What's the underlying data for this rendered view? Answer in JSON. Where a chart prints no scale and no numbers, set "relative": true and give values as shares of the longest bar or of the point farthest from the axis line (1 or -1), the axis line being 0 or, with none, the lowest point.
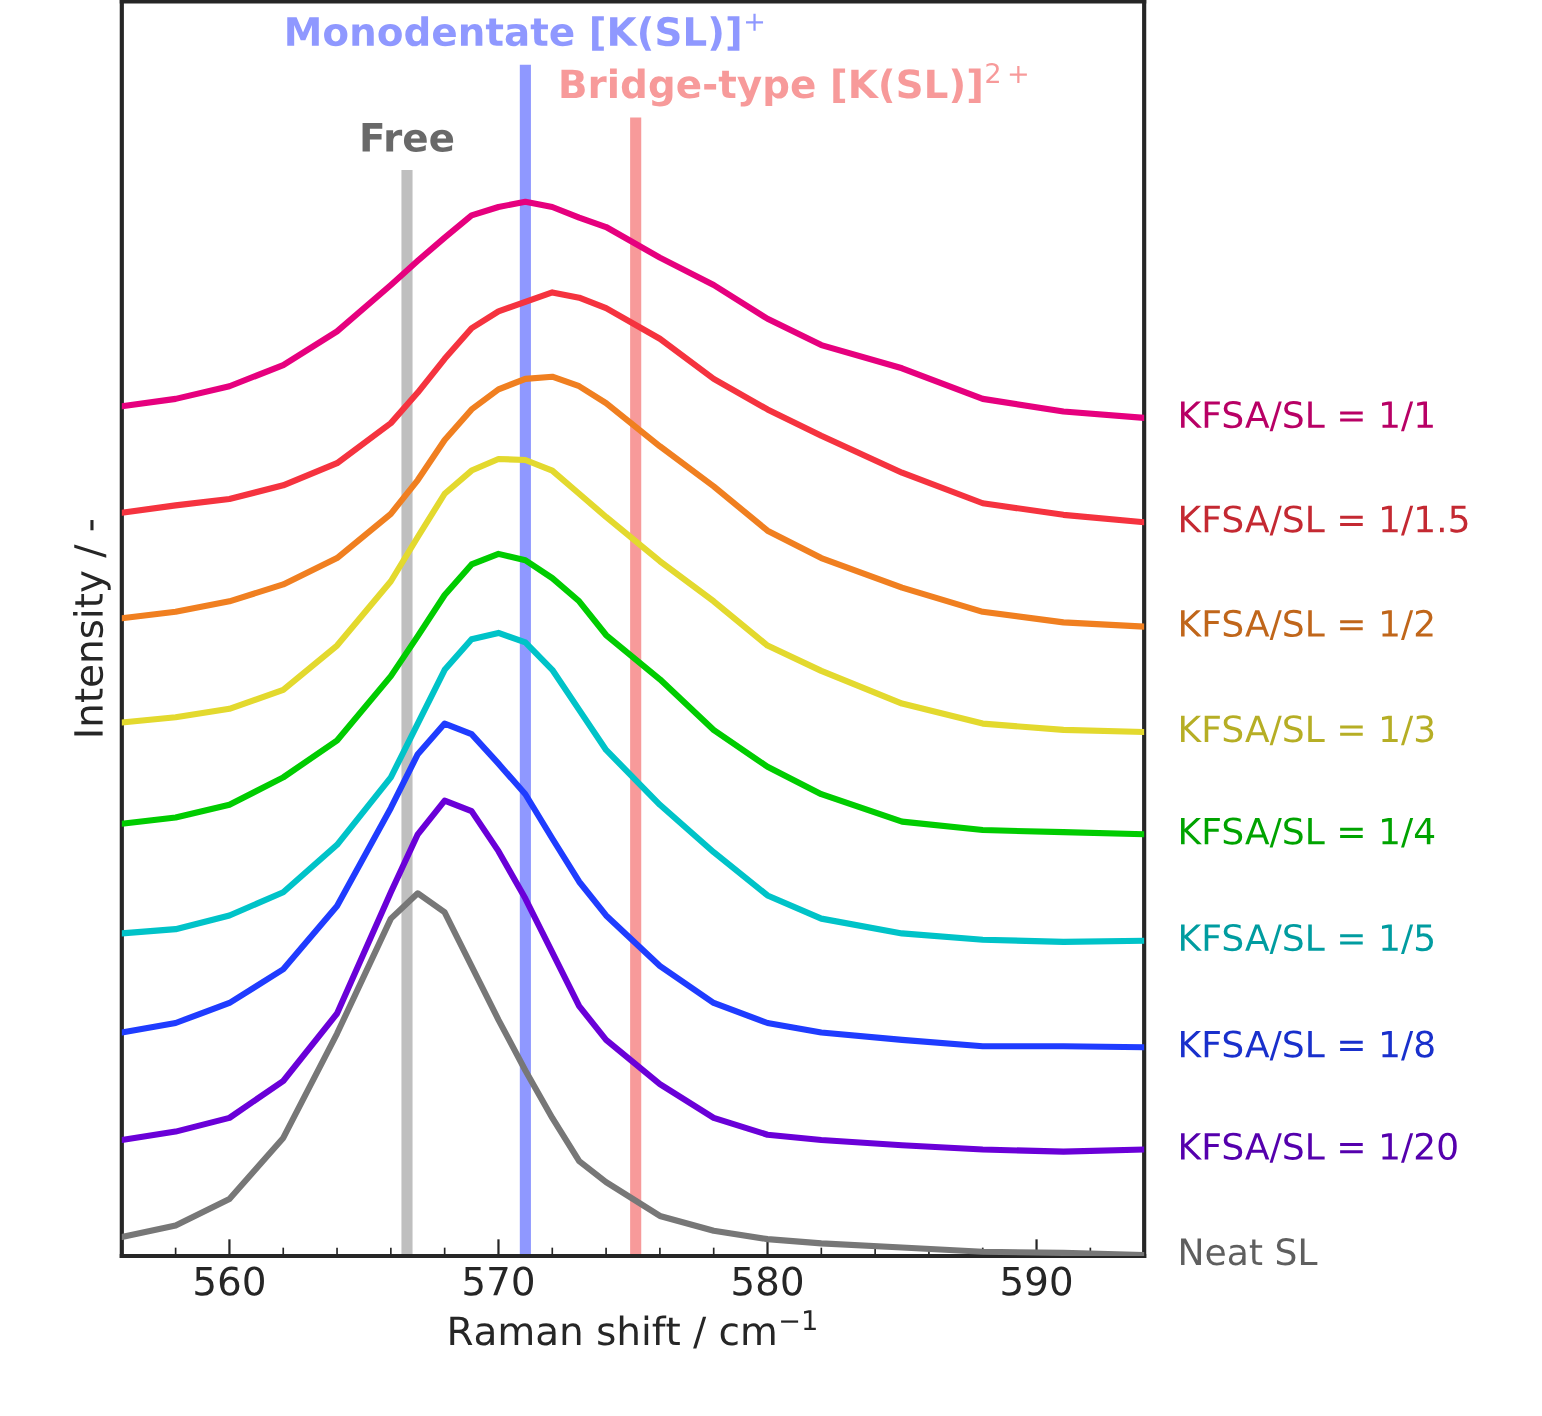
{
  "chart_data": {
    "type": "line",
    "relative": true,
    "xlabel": "Raman shift / cm$^{−1}$",
    "ylabel": "Intensity / -",
    "xlim": [
      556,
      594
    ],
    "xticks": [
      560,
      570,
      580,
      590
    ],
    "grid": false,
    "legend": false,
    "marker": "none",
    "line_style": "solid",
    "x": [
      556,
      558,
      560,
      562,
      564,
      566,
      567,
      568,
      569,
      570,
      571,
      572,
      573,
      574,
      576,
      578,
      580,
      582,
      585,
      588,
      591,
      594
    ],
    "series": [
      {
        "name": "KFSA/SL = 1/1",
        "color": "#e6007e",
        "values": [
          0.806,
          0.813,
          0.825,
          0.845,
          0.877,
          0.921,
          0.944,
          0.966,
          0.987,
          0.995,
          1.0,
          0.995,
          0.985,
          0.976,
          0.947,
          0.921,
          0.889,
          0.864,
          0.842,
          0.813,
          0.801,
          0.795
        ]
      },
      {
        "name": "KFSA/SL = 1/1.5",
        "color": "#f5333f",
        "values": [
          0.705,
          0.712,
          0.718,
          0.731,
          0.752,
          0.79,
          0.819,
          0.851,
          0.88,
          0.896,
          0.905,
          0.914,
          0.909,
          0.899,
          0.87,
          0.832,
          0.803,
          0.778,
          0.743,
          0.714,
          0.703,
          0.696
        ]
      },
      {
        "name": "KFSA/SL = 1/2",
        "color": "#f07f20",
        "values": [
          0.605,
          0.611,
          0.621,
          0.637,
          0.662,
          0.704,
          0.736,
          0.774,
          0.803,
          0.822,
          0.832,
          0.834,
          0.825,
          0.809,
          0.768,
          0.73,
          0.688,
          0.662,
          0.634,
          0.611,
          0.601,
          0.597
        ]
      },
      {
        "name": "KFSA/SL = 1/3",
        "color": "#e3d92e",
        "values": [
          0.506,
          0.511,
          0.519,
          0.537,
          0.579,
          0.64,
          0.682,
          0.723,
          0.745,
          0.756,
          0.755,
          0.745,
          0.723,
          0.701,
          0.659,
          0.621,
          0.579,
          0.555,
          0.524,
          0.505,
          0.499,
          0.497
        ]
      },
      {
        "name": "KFSA/SL = 1/4",
        "color": "#00cc00",
        "values": [
          0.41,
          0.416,
          0.428,
          0.454,
          0.489,
          0.55,
          0.588,
          0.627,
          0.656,
          0.666,
          0.66,
          0.643,
          0.621,
          0.589,
          0.547,
          0.499,
          0.464,
          0.438,
          0.412,
          0.404,
          0.402,
          0.4
        ]
      },
      {
        "name": "KFSA/SL = 1/5",
        "color": "#00c3c8",
        "values": [
          0.306,
          0.31,
          0.323,
          0.345,
          0.39,
          0.454,
          0.505,
          0.556,
          0.585,
          0.591,
          0.582,
          0.556,
          0.518,
          0.48,
          0.428,
          0.383,
          0.342,
          0.32,
          0.306,
          0.3,
          0.298,
          0.299
        ]
      },
      {
        "name": "KFSA/SL = 1/8",
        "color": "#1f3cff",
        "values": [
          0.212,
          0.221,
          0.24,
          0.272,
          0.332,
          0.425,
          0.476,
          0.505,
          0.495,
          0.467,
          0.438,
          0.396,
          0.355,
          0.323,
          0.275,
          0.24,
          0.221,
          0.212,
          0.205,
          0.199,
          0.199,
          0.198
        ]
      },
      {
        "name": "KFSA/SL = 1/20",
        "color": "#6a00d8",
        "values": [
          0.11,
          0.118,
          0.131,
          0.166,
          0.23,
          0.345,
          0.4,
          0.432,
          0.422,
          0.384,
          0.339,
          0.288,
          0.237,
          0.205,
          0.163,
          0.131,
          0.115,
          0.11,
          0.105,
          0.101,
          0.099,
          0.101
        ]
      },
      {
        "name": "Neat SL",
        "color": "#777777",
        "values": [
          0.018,
          0.029,
          0.054,
          0.112,
          0.211,
          0.32,
          0.344,
          0.326,
          0.275,
          0.224,
          0.176,
          0.131,
          0.09,
          0.07,
          0.038,
          0.024,
          0.016,
          0.012,
          0.008,
          0.004,
          0.003,
          0.001
        ]
      }
    ],
    "ref_lines": [
      {
        "axis": "x",
        "value": 566.6,
        "label": "Free",
        "color": "#bfbfbf"
      },
      {
        "axis": "x",
        "value": 571.0,
        "label": "Monodentate [K(SL)]$^{+}$",
        "color": "#8f98ff"
      },
      {
        "axis": "x",
        "value": 575.1,
        "label": "Bridge-type [K(SL)]$^{2+}$",
        "color": "#f79a9a"
      }
    ]
  }
}
